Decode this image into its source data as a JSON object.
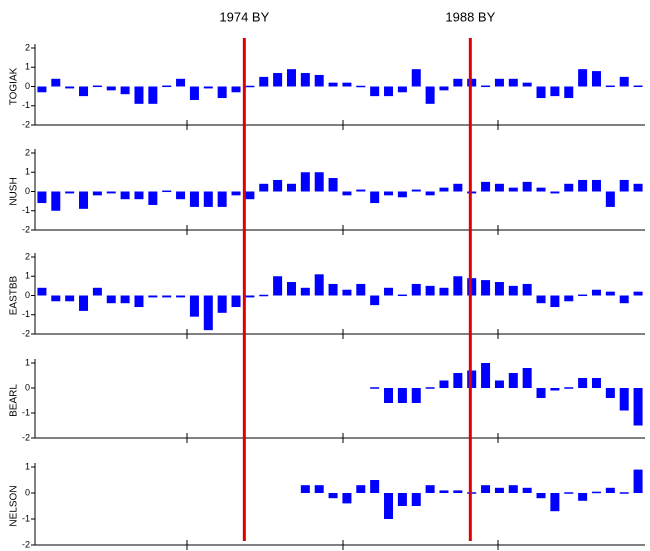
{
  "chart_data": [
    {
      "type": "bar",
      "title": "TOGIAK",
      "color": "#0000ff",
      "categories": [
        null,
        null,
        null,
        null,
        null,
        null,
        null,
        null,
        null,
        null,
        null,
        null,
        null,
        null,
        null,
        null,
        null,
        null,
        null,
        null,
        null,
        null,
        null,
        null,
        null,
        null,
        null,
        null,
        null,
        null,
        null,
        null,
        null,
        null,
        null,
        null,
        null,
        null,
        null,
        null,
        null,
        null,
        null,
        null
      ],
      "values": [
        -0.3,
        0.4,
        -0.1,
        -0.5,
        0.05,
        -0.2,
        -0.4,
        -0.9,
        -0.9,
        0.05,
        0.4,
        -0.7,
        -0.1,
        -0.6,
        -0.3,
        0,
        0.5,
        0.7,
        0.9,
        0.7,
        0.6,
        0.2,
        0.2,
        0,
        -0.5,
        -0.5,
        -0.3,
        0.9,
        -0.9,
        -0.2,
        0.4,
        0.4,
        0.05,
        0.4,
        0.4,
        0.2,
        -0.6,
        -0.5,
        -0.6,
        0.9,
        0.8,
        0.05,
        0.5,
        0.05
      ],
      "ylim": [
        -2,
        2
      ],
      "yticks": [
        -2,
        -1,
        0,
        1,
        2
      ]
    },
    {
      "type": "bar",
      "title": "NUSH",
      "color": "#0000ff",
      "categories": [
        null,
        null,
        null,
        null,
        null,
        null,
        null,
        null,
        null,
        null,
        null,
        null,
        null,
        null,
        null,
        null,
        null,
        null,
        null,
        null,
        null,
        null,
        null,
        null,
        null,
        null,
        null,
        null,
        null,
        null,
        null,
        null,
        null,
        null,
        null,
        null,
        null,
        null,
        null,
        null,
        null,
        null,
        null,
        null
      ],
      "values": [
        -0.6,
        -1.0,
        -0.1,
        -0.9,
        -0.2,
        -0.1,
        -0.4,
        -0.4,
        -0.7,
        0.05,
        -0.4,
        -0.8,
        -0.8,
        -0.8,
        -0.2,
        -0.4,
        0.4,
        0.6,
        0.4,
        1.0,
        1.0,
        0.7,
        -0.2,
        0.1,
        -0.6,
        -0.2,
        -0.3,
        0.1,
        -0.2,
        0.2,
        0.4,
        -0.1,
        0.5,
        0.4,
        0.2,
        0.5,
        0.2,
        -0.1,
        0.4,
        0.6,
        0.6,
        -0.8,
        0.6,
        0.4
      ],
      "ylim": [
        -2,
        2
      ],
      "yticks": [
        -2,
        -1,
        0,
        1,
        2
      ]
    },
    {
      "type": "bar",
      "title": "EASTBB",
      "color": "#0000ff",
      "categories": [
        null,
        null,
        null,
        null,
        null,
        null,
        null,
        null,
        null,
        null,
        null,
        null,
        null,
        null,
        null,
        null,
        null,
        null,
        null,
        null,
        null,
        null,
        null,
        null,
        null,
        null,
        null,
        null,
        null,
        null,
        null,
        null,
        null,
        null,
        null,
        null,
        null,
        null,
        null,
        null,
        null,
        null,
        null,
        null
      ],
      "values": [
        0.4,
        -0.3,
        -0.3,
        -0.8,
        0.4,
        -0.4,
        -0.4,
        -0.6,
        -0.1,
        -0.1,
        -0.1,
        -1.1,
        -1.8,
        -0.9,
        -0.6,
        -0.1,
        0,
        1.0,
        0.7,
        0.4,
        1.1,
        0.6,
        0.3,
        0.6,
        -0.5,
        0.4,
        0.05,
        0.6,
        0.5,
        0.4,
        1.0,
        0.9,
        0.8,
        0.7,
        0.5,
        0.6,
        -0.4,
        -0.6,
        -0.3,
        0.05,
        0.3,
        0.2,
        -0.4,
        0.2
      ],
      "ylim": [
        -2,
        2
      ],
      "yticks": [
        -2,
        -1,
        0,
        1,
        2
      ]
    },
    {
      "type": "bar",
      "title": "BEARL",
      "color": "#0000ff",
      "categories": [
        null,
        null,
        null,
        null,
        null,
        null,
        null,
        null,
        null,
        null,
        null,
        null,
        null,
        null,
        null,
        null,
        null,
        null,
        null,
        null,
        null,
        null,
        null,
        null,
        null,
        null,
        null,
        null,
        null,
        null,
        null,
        null,
        null,
        null,
        null,
        null,
        null,
        null,
        null,
        null,
        null,
        null,
        null,
        null
      ],
      "values": [
        null,
        null,
        null,
        null,
        null,
        null,
        null,
        null,
        null,
        null,
        null,
        null,
        null,
        null,
        null,
        null,
        null,
        null,
        null,
        null,
        null,
        null,
        null,
        null,
        0,
        -0.6,
        -0.6,
        -0.6,
        0,
        0.3,
        0.6,
        0.7,
        1.0,
        0.3,
        0.6,
        0.8,
        -0.4,
        -0.1,
        0,
        0.4,
        0.4,
        -0.4,
        -0.9,
        -1.5
      ],
      "ylim": [
        -2,
        1
      ],
      "yticks": [
        -2,
        -1,
        0,
        1
      ]
    },
    {
      "type": "bar",
      "title": "NELSON",
      "color": "#0000ff",
      "categories": [
        null,
        null,
        null,
        null,
        null,
        null,
        null,
        null,
        null,
        null,
        null,
        null,
        null,
        null,
        null,
        null,
        null,
        null,
        null,
        null,
        null,
        null,
        null,
        null,
        null,
        null,
        null,
        null,
        null,
        null,
        null,
        null,
        null,
        null,
        null,
        null,
        null,
        null,
        null,
        null,
        null,
        null,
        null,
        null
      ],
      "values": [
        null,
        null,
        null,
        null,
        null,
        null,
        null,
        null,
        null,
        null,
        null,
        null,
        null,
        null,
        null,
        null,
        null,
        null,
        null,
        0.3,
        0.3,
        -0.2,
        -0.4,
        0.3,
        0.5,
        -1.0,
        -0.5,
        -0.5,
        0.3,
        0.1,
        0.1,
        0,
        0.3,
        0.2,
        0.3,
        0.2,
        -0.2,
        -0.7,
        0,
        -0.3,
        0.05,
        0.2,
        0,
        0.9
      ],
      "ylim": [
        -2,
        1
      ],
      "yticks": [
        -2,
        -1,
        0,
        1
      ]
    }
  ],
  "annotations": [
    {
      "x": 14.6,
      "label": "1974 BY",
      "color": "#e00000"
    },
    {
      "x": 30.9,
      "label": "1988 BY",
      "color": "#e00000"
    }
  ]
}
